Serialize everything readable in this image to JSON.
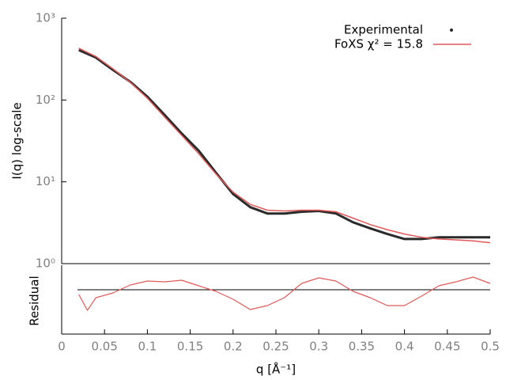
{
  "chart_data": [
    {
      "type": "line",
      "y_label": "I(q) log-scale",
      "log_y": true,
      "legend": "top-right",
      "x": [
        0.02,
        0.04,
        0.06,
        0.08,
        0.1,
        0.12,
        0.14,
        0.16,
        0.18,
        0.2,
        0.22,
        0.24,
        0.26,
        0.28,
        0.3,
        0.32,
        0.34,
        0.36,
        0.38,
        0.4,
        0.42,
        0.44,
        0.46,
        0.48,
        0.5
      ],
      "xlim": [
        0,
        0.5
      ],
      "ylim": [
        1,
        1000
      ],
      "yticks": [
        {
          "value": 1,
          "label": "10⁰"
        },
        {
          "value": 10,
          "label": "10¹"
        },
        {
          "value": 100,
          "label": "10²"
        },
        {
          "value": 1000,
          "label": "10³"
        }
      ],
      "series": [
        {
          "name": "Experimental",
          "color": "#2a2a2a",
          "width": 3,
          "values": [
            407,
            330,
            233,
            167,
            110,
            66,
            39,
            24,
            12.9,
            7.1,
            4.9,
            4.1,
            4.1,
            4.3,
            4.4,
            4.1,
            3.2,
            2.7,
            2.3,
            2.0,
            2.0,
            2.1,
            2.1,
            2.1,
            2.1
          ]
        },
        {
          "name": "FoXS χ² = 15.8",
          "color": "#e05a5a",
          "width": 1.5,
          "values": [
            430,
            340,
            240,
            165,
            105,
            62,
            37,
            22,
            12.5,
            7.5,
            5.3,
            4.5,
            4.4,
            4.5,
            4.5,
            4.3,
            3.6,
            3.0,
            2.6,
            2.3,
            2.1,
            2.0,
            1.95,
            1.9,
            1.8
          ]
        }
      ]
    },
    {
      "type": "line",
      "y_label": "Residual",
      "x_label": "q [Å⁻¹]",
      "x": [
        0.02,
        0.03,
        0.04,
        0.06,
        0.08,
        0.1,
        0.12,
        0.14,
        0.16,
        0.18,
        0.2,
        0.22,
        0.24,
        0.26,
        0.28,
        0.3,
        0.32,
        0.34,
        0.36,
        0.38,
        0.4,
        0.42,
        0.44,
        0.46,
        0.48,
        0.5
      ],
      "xlim": [
        0,
        0.5
      ],
      "xticks": [
        0,
        0.05,
        0.1,
        0.15,
        0.2,
        0.25,
        0.3,
        0.35,
        0.4,
        0.45,
        0.5
      ],
      "ylim": [
        -5.6,
        3.1
      ],
      "series": [
        {
          "color": "#e05a5a",
          "width": 1.2,
          "values": [
            -0.6,
            -2.6,
            -1.0,
            -0.4,
            0.6,
            1.1,
            1.0,
            1.2,
            0.5,
            -0.2,
            -1.2,
            -2.5,
            -2.0,
            -1.0,
            0.8,
            1.5,
            1.1,
            -0.2,
            -1.0,
            -2.0,
            -2.0,
            -0.8,
            0.5,
            1.0,
            1.6,
            0.8
          ]
        }
      ]
    }
  ]
}
